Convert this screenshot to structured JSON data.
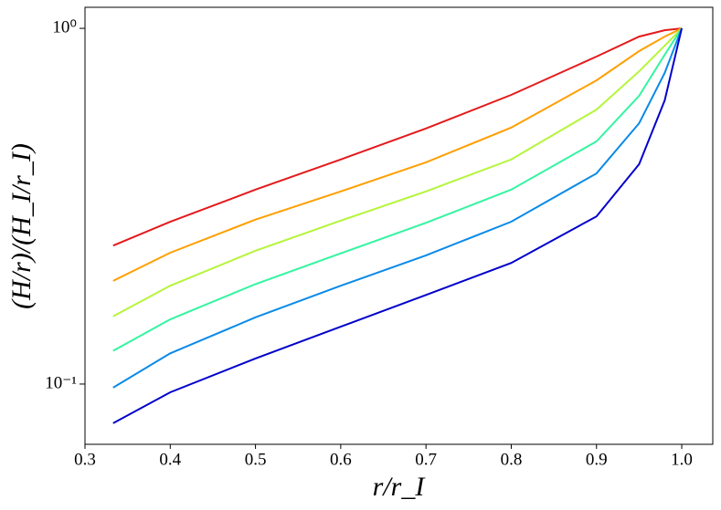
{
  "chart_data": {
    "type": "line",
    "x_label": "r/r_I",
    "y_label": "(H/r)/(H_I/r_I)",
    "yscale": "log",
    "x": [
      0.333,
      0.4,
      0.5,
      0.6,
      0.7,
      0.8,
      0.9,
      0.95,
      0.98,
      1.0
    ],
    "series": [
      {
        "color": "#e41a1c",
        "values": [
          0.245,
          0.286,
          0.352,
          0.428,
          0.523,
          0.65,
          0.833,
          0.948,
          0.988,
          1.0
        ]
      },
      {
        "color": "#ff9f00",
        "values": [
          0.195,
          0.234,
          0.29,
          0.348,
          0.42,
          0.526,
          0.714,
          0.863,
          0.948,
          1.0
        ]
      },
      {
        "color": "#b5f53a",
        "values": [
          0.155,
          0.189,
          0.237,
          0.288,
          0.348,
          0.428,
          0.591,
          0.757,
          0.894,
          1.0
        ]
      },
      {
        "color": "#33f5a0",
        "values": [
          0.124,
          0.152,
          0.191,
          0.233,
          0.284,
          0.352,
          0.481,
          0.646,
          0.843,
          1.0
        ]
      },
      {
        "color": "#0a8ae8",
        "values": [
          0.0977,
          0.122,
          0.154,
          0.189,
          0.23,
          0.286,
          0.391,
          0.541,
          0.749,
          1.0
        ]
      },
      {
        "color": "#0000cc",
        "values": [
          0.0776,
          0.0948,
          0.118,
          0.145,
          0.178,
          0.219,
          0.296,
          0.415,
          0.627,
          1.0
        ]
      }
    ],
    "xlim": [
      0.3,
      1.0364
    ],
    "xticks": [
      {
        "value": 0.3,
        "label": "0.3"
      },
      {
        "value": 0.4,
        "label": "0.4"
      },
      {
        "value": 0.5,
        "label": "0.5"
      },
      {
        "value": 0.6,
        "label": "0.6"
      },
      {
        "value": 0.7,
        "label": "0.7"
      },
      {
        "value": 0.8,
        "label": "0.8"
      },
      {
        "value": 0.9,
        "label": "0.9"
      },
      {
        "value": 1.0,
        "label": "1.0"
      }
    ],
    "ylim": [
      0.0677,
      1.146
    ],
    "yticks": [
      {
        "value": 0.1,
        "label": "10⁻¹"
      },
      {
        "value": 1,
        "label": "10⁰"
      }
    ],
    "grid": false
  }
}
